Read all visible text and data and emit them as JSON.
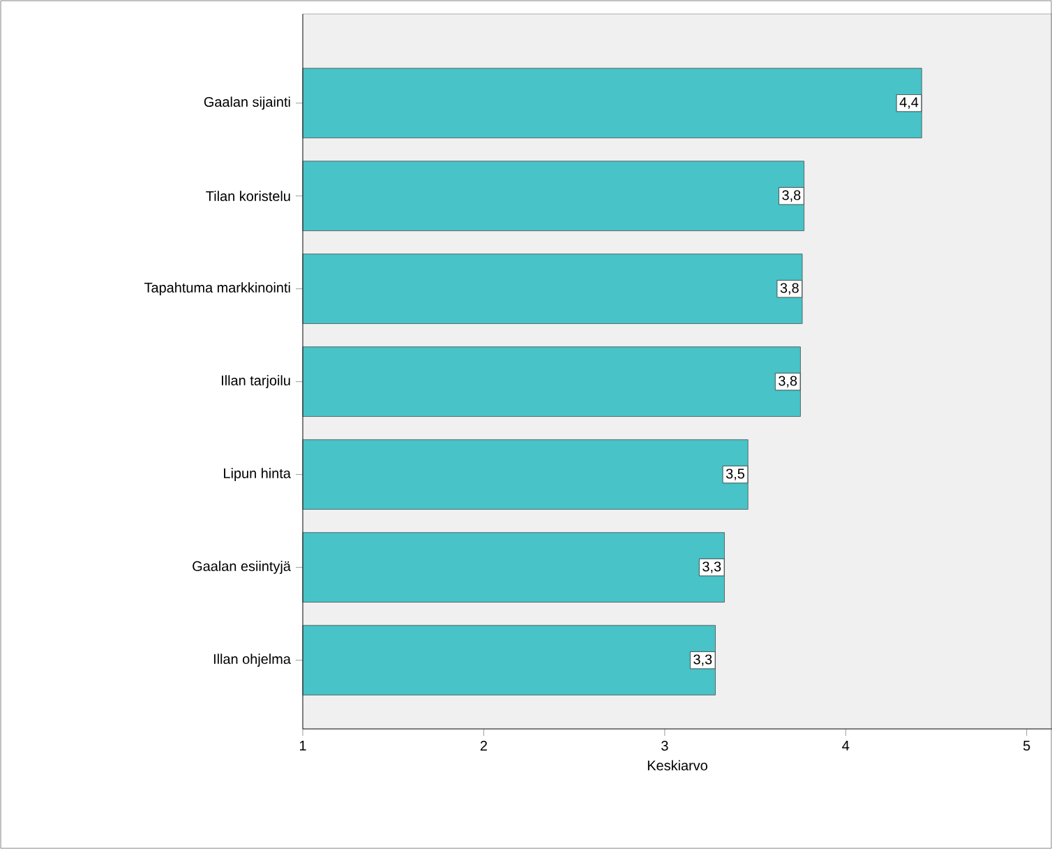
{
  "chart_data": {
    "type": "bar",
    "orientation": "horizontal",
    "xlabel": "Keskiarvo",
    "categories": [
      "Gaalan sijainti",
      "Tilan koristelu",
      "Tapahtuma markkinointi",
      "Illan tarjoilu",
      "Lipun hinta",
      "Gaalan esiintyjä",
      "Illan ohjelma"
    ],
    "values": [
      4.42,
      3.77,
      3.76,
      3.75,
      3.46,
      3.33,
      3.28
    ],
    "value_labels": [
      "4,4",
      "3,8",
      "3,8",
      "3,8",
      "3,5",
      "3,3",
      "3,3"
    ],
    "color": "#48c3c7",
    "xlim": [
      1,
      5.14
    ],
    "xticks": [
      1,
      2,
      3,
      4,
      5
    ]
  }
}
